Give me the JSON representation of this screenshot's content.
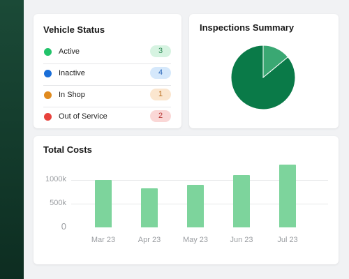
{
  "colors": {
    "sidebar": "#163f2f",
    "bar": "#7dd49c",
    "pie_main": "#0a7a48",
    "pie_slice": "#3aa873"
  },
  "vehicle_status": {
    "title": "Vehicle Status",
    "items": [
      {
        "label": "Active",
        "count": "3",
        "dot_color": "#22c36a",
        "badge_bg": "#d6f3e1",
        "badge_fg": "#2d8a55"
      },
      {
        "label": "Inactive",
        "count": "4",
        "dot_color": "#1a6ed8",
        "badge_bg": "#d5e8fb",
        "badge_fg": "#2a66b8"
      },
      {
        "label": "In Shop",
        "count": "1",
        "dot_color": "#e08a1e",
        "badge_bg": "#fbe6cf",
        "badge_fg": "#b86a1a"
      },
      {
        "label": "Out of Service",
        "count": "2",
        "dot_color": "#e8423c",
        "badge_bg": "#fad7d6",
        "badge_fg": "#b83a36"
      }
    ]
  },
  "inspections": {
    "title": "Inspections Summary",
    "chart_data": {
      "type": "pie",
      "slices": [
        {
          "value": 86,
          "color": "#0a7a48"
        },
        {
          "value": 14,
          "color": "#3aa873"
        }
      ]
    }
  },
  "total_costs": {
    "title": "Total Costs",
    "chart_data": {
      "type": "bar",
      "categories": [
        "Mar 23",
        "Apr 23",
        "May 23",
        "Jun 23",
        "Jul 23"
      ],
      "values": [
        1000,
        820,
        890,
        1100,
        1320
      ],
      "yticks": [
        {
          "value": 0,
          "label": "0"
        },
        {
          "value": 500,
          "label": "500k"
        },
        {
          "value": 1000,
          "label": "1000k"
        }
      ],
      "ylim": [
        0,
        1350
      ],
      "grid": true
    }
  }
}
